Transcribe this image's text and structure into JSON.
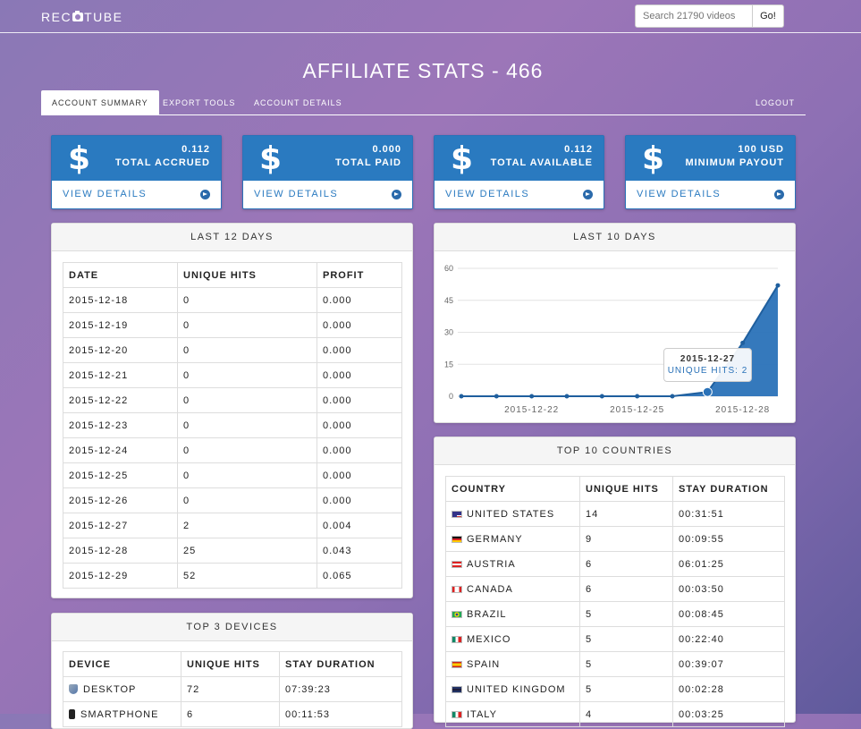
{
  "brand": {
    "logo_left": "REC",
    "logo_right": "TUBE"
  },
  "search": {
    "placeholder": "Search 21790 videos",
    "button": "Go!"
  },
  "page_title": "AFFILIATE STATS - 466",
  "tabs": [
    {
      "label": "ACCOUNT SUMMARY"
    },
    {
      "label": "EXPORT TOOLS"
    },
    {
      "label": "ACCOUNT DETAILS"
    },
    {
      "label": "LOGOUT"
    }
  ],
  "colors": {
    "accent": "#2a7ac0",
    "chart_fill": "#2a72b8"
  },
  "stat_cards": [
    {
      "symbol": "$",
      "value": "0.112",
      "label": "TOTAL ACCRUED",
      "link": "VIEW DETAILS"
    },
    {
      "symbol": "$",
      "value": "0.000",
      "label": "TOTAL PAID",
      "link": "VIEW DETAILS"
    },
    {
      "symbol": "$",
      "value": "0.112",
      "label": "TOTAL AVAILABLE",
      "link": "VIEW DETAILS"
    },
    {
      "symbol": "$",
      "value": "100 USD",
      "label": "MINIMUM PAYOUT",
      "link": "VIEW DETAILS"
    }
  ],
  "last12": {
    "title": "LAST 12 DAYS",
    "headers": [
      "DATE",
      "UNIQUE HITS",
      "PROFIT"
    ],
    "rows": [
      [
        "2015-12-18",
        "0",
        "0.000"
      ],
      [
        "2015-12-19",
        "0",
        "0.000"
      ],
      [
        "2015-12-20",
        "0",
        "0.000"
      ],
      [
        "2015-12-21",
        "0",
        "0.000"
      ],
      [
        "2015-12-22",
        "0",
        "0.000"
      ],
      [
        "2015-12-23",
        "0",
        "0.000"
      ],
      [
        "2015-12-24",
        "0",
        "0.000"
      ],
      [
        "2015-12-25",
        "0",
        "0.000"
      ],
      [
        "2015-12-26",
        "0",
        "0.000"
      ],
      [
        "2015-12-27",
        "2",
        "0.004"
      ],
      [
        "2015-12-28",
        "25",
        "0.043"
      ],
      [
        "2015-12-29",
        "52",
        "0.065"
      ]
    ]
  },
  "last10": {
    "title": "LAST 10 DAYS",
    "tooltip": {
      "date": "2015-12-27",
      "text": "UNIQUE HITS: 2"
    }
  },
  "chart_data": {
    "type": "area",
    "x": [
      "2015-12-20",
      "2015-12-21",
      "2015-12-22",
      "2015-12-23",
      "2015-12-24",
      "2015-12-25",
      "2015-12-26",
      "2015-12-27",
      "2015-12-28",
      "2015-12-29"
    ],
    "values": [
      0,
      0,
      0,
      0,
      0,
      0,
      0,
      2,
      25,
      52
    ],
    "ylim": [
      0,
      60
    ],
    "yticks": [
      0,
      15,
      30,
      45,
      60
    ],
    "xtick_labels": [
      "2015-12-22",
      "2015-12-25",
      "2015-12-28"
    ],
    "grid": true
  },
  "devices": {
    "title": "TOP 3 DEVICES",
    "headers": [
      "DEVICE",
      "UNIQUE HITS",
      "STAY DURATION"
    ],
    "rows": [
      {
        "icon": "desktop-icon",
        "name": "DESKTOP",
        "hits": "72",
        "stay": "07:39:23"
      },
      {
        "icon": "smartphone-icon",
        "name": "SMARTPHONE",
        "hits": "6",
        "stay": "00:11:53"
      }
    ]
  },
  "countries": {
    "title": "TOP 10 COUNTRIES",
    "headers": [
      "COUNTRY",
      "UNIQUE HITS",
      "STAY DURATION"
    ],
    "rows": [
      {
        "flag": "us-flag-icon",
        "name": "UNITED STATES",
        "hits": "14",
        "stay": "00:31:51"
      },
      {
        "flag": "de-flag-icon",
        "name": "GERMANY",
        "hits": "9",
        "stay": "00:09:55"
      },
      {
        "flag": "at-flag-icon",
        "name": "AUSTRIA",
        "hits": "6",
        "stay": "06:01:25"
      },
      {
        "flag": "ca-flag-icon",
        "name": "CANADA",
        "hits": "6",
        "stay": "00:03:50"
      },
      {
        "flag": "br-flag-icon",
        "name": "BRAZIL",
        "hits": "5",
        "stay": "00:08:45"
      },
      {
        "flag": "mx-flag-icon",
        "name": "MEXICO",
        "hits": "5",
        "stay": "00:22:40"
      },
      {
        "flag": "es-flag-icon",
        "name": "SPAIN",
        "hits": "5",
        "stay": "00:39:07"
      },
      {
        "flag": "gb-flag-icon",
        "name": "UNITED KINGDOM",
        "hits": "5",
        "stay": "00:02:28"
      },
      {
        "flag": "it-flag-icon",
        "name": "ITALY",
        "hits": "4",
        "stay": "00:03:25"
      }
    ]
  }
}
